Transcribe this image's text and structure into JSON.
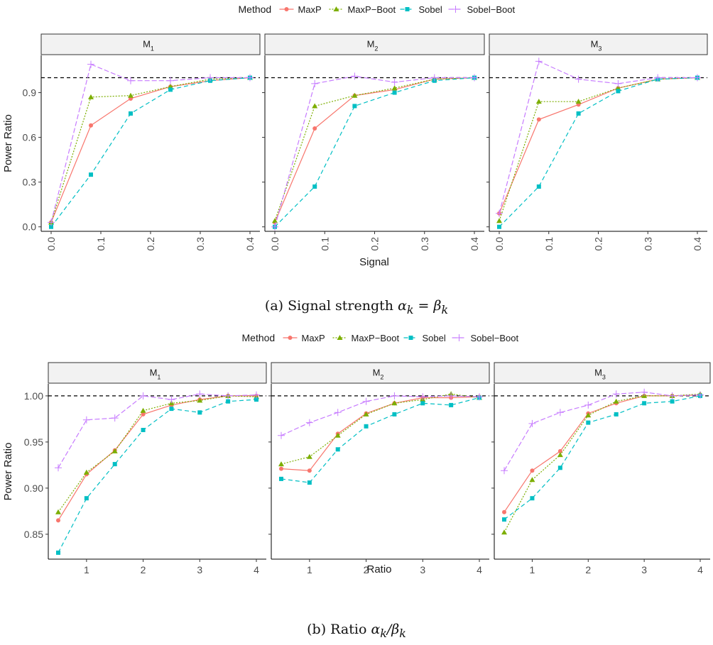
{
  "captions": {
    "a_prefix": "(a) Signal strength ",
    "a_math": "α",
    "a_math_sub": "k",
    "a_eq": " = β",
    "a_math_sub2": "k",
    "b_prefix": "(b) Ratio ",
    "b_math": "α",
    "b_math_sub": "k",
    "b_slash": "/β",
    "b_math_sub2": "k"
  },
  "colors": {
    "MaxP": "#F8766D",
    "MaxP-Boot": "#7CAE00",
    "Sobel": "#00BFC4",
    "Sobel-Boot": "#C77CFF",
    "strip_fill": "#f2f2f2",
    "reference_line": "#000000"
  },
  "chart_data": [
    {
      "type": "line",
      "facet_labels": [
        "M",
        "M",
        "M"
      ],
      "facet_subscripts": [
        "1",
        "2",
        "3"
      ],
      "legend_title": "Method",
      "legend_position": "top",
      "xlabel": "Signal",
      "ylabel": "Power Ratio",
      "xlim": [
        0,
        0.4
      ],
      "ylim": [
        -0.03,
        1.15
      ],
      "x_ticks": [
        "0.0",
        "0.1",
        "0.2",
        "0.3",
        "0.4"
      ],
      "x_tick_values": [
        0,
        0.1,
        0.2,
        0.3,
        0.4
      ],
      "x_tick_rotation": "vertical",
      "y_ticks": [
        "0.0",
        "0.3",
        "0.6",
        "0.9"
      ],
      "y_tick_values": [
        0,
        0.3,
        0.6,
        0.9
      ],
      "reference_line_y": 1.0,
      "x": [
        0,
        0.08,
        0.16,
        0.24,
        0.32,
        0.4
      ],
      "facets": [
        {
          "series": [
            {
              "name": "MaxP",
              "values": [
                0.03,
                0.68,
                0.86,
                0.94,
                0.98,
                1.0
              ]
            },
            {
              "name": "MaxP-Boot",
              "values": [
                0.03,
                0.87,
                0.88,
                0.94,
                0.99,
                1.0
              ]
            },
            {
              "name": "Sobel",
              "values": [
                0.0,
                0.35,
                0.76,
                0.92,
                0.98,
                1.0
              ]
            },
            {
              "name": "Sobel-Boot",
              "values": [
                0.03,
                1.09,
                0.98,
                0.98,
                1.0,
                1.0
              ]
            }
          ]
        },
        {
          "series": [
            {
              "name": "MaxP",
              "values": [
                0.03,
                0.66,
                0.88,
                0.92,
                0.99,
                1.0
              ]
            },
            {
              "name": "MaxP-Boot",
              "values": [
                0.04,
                0.81,
                0.88,
                0.93,
                0.99,
                1.0
              ]
            },
            {
              "name": "Sobel",
              "values": [
                0.0,
                0.27,
                0.81,
                0.9,
                0.98,
                1.0
              ]
            },
            {
              "name": "Sobel-Boot",
              "values": [
                0.0,
                0.96,
                1.01,
                0.97,
                1.0,
                1.0
              ]
            }
          ]
        },
        {
          "series": [
            {
              "name": "MaxP",
              "values": [
                0.09,
                0.72,
                0.82,
                0.93,
                0.99,
                1.0
              ]
            },
            {
              "name": "MaxP-Boot",
              "values": [
                0.04,
                0.84,
                0.84,
                0.93,
                0.99,
                1.0
              ]
            },
            {
              "name": "Sobel",
              "values": [
                0.0,
                0.27,
                0.76,
                0.91,
                0.99,
                1.0
              ]
            },
            {
              "name": "Sobel-Boot",
              "values": [
                0.09,
                1.11,
                0.99,
                0.96,
                1.0,
                1.0
              ]
            }
          ]
        }
      ]
    },
    {
      "type": "line",
      "facet_labels": [
        "M",
        "M",
        "M"
      ],
      "facet_subscripts": [
        "1",
        "2",
        "3"
      ],
      "legend_title": "Method",
      "legend_position": "top",
      "xlabel": "Ratio",
      "ylabel": "Power Ratio",
      "xlim": [
        0.5,
        4
      ],
      "ylim": [
        0.823,
        1.013
      ],
      "x_ticks": [
        "1",
        "2",
        "3",
        "4"
      ],
      "x_tick_values": [
        1,
        2,
        3,
        4
      ],
      "x_tick_rotation": "horizontal",
      "y_ticks": [
        "0.85",
        "0.90",
        "0.95",
        "1.00"
      ],
      "y_tick_values": [
        0.85,
        0.9,
        0.95,
        1.0
      ],
      "reference_line_y": 1.0,
      "x": [
        0.5,
        1,
        1.5,
        2,
        2.5,
        3,
        3.5,
        4
      ],
      "facets": [
        {
          "series": [
            {
              "name": "MaxP",
              "values": [
                0.865,
                0.915,
                0.941,
                0.98,
                0.99,
                0.996,
                1.0,
                1.0
              ]
            },
            {
              "name": "MaxP-Boot",
              "values": [
                0.874,
                0.917,
                0.94,
                0.984,
                0.992,
                0.995,
                1.0,
                0.999
              ]
            },
            {
              "name": "Sobel",
              "values": [
                0.83,
                0.889,
                0.926,
                0.963,
                0.986,
                0.982,
                0.994,
                0.996
              ]
            },
            {
              "name": "Sobel-Boot",
              "values": [
                0.922,
                0.974,
                0.976,
                1.0,
                0.996,
                1.002,
                1.0,
                1.001
              ]
            }
          ]
        },
        {
          "series": [
            {
              "name": "MaxP",
              "values": [
                0.921,
                0.919,
                0.959,
                0.981,
                0.992,
                0.998,
                0.998,
                0.999
              ]
            },
            {
              "name": "MaxP-Boot",
              "values": [
                0.926,
                0.934,
                0.957,
                0.98,
                0.992,
                0.996,
                1.002,
                0.998
              ]
            },
            {
              "name": "Sobel",
              "values": [
                0.91,
                0.906,
                0.942,
                0.967,
                0.98,
                0.992,
                0.99,
                0.998
              ]
            },
            {
              "name": "Sobel-Boot",
              "values": [
                0.957,
                0.971,
                0.982,
                0.994,
                1.0,
                0.999,
                1.0,
                0.999
              ]
            }
          ]
        },
        {
          "series": [
            {
              "name": "MaxP",
              "values": [
                0.874,
                0.919,
                0.94,
                0.981,
                0.992,
                1.0,
                1.0,
                1.001
              ]
            },
            {
              "name": "MaxP-Boot",
              "values": [
                0.852,
                0.909,
                0.936,
                0.979,
                0.994,
                1.0,
                1.0,
                1.002
              ]
            },
            {
              "name": "Sobel",
              "values": [
                0.866,
                0.889,
                0.922,
                0.971,
                0.98,
                0.992,
                0.994,
                1.0
              ]
            },
            {
              "name": "Sobel-Boot",
              "values": [
                0.919,
                0.97,
                0.982,
                0.99,
                1.002,
                1.004,
                1.0,
                1.001
              ]
            }
          ]
        }
      ]
    }
  ]
}
